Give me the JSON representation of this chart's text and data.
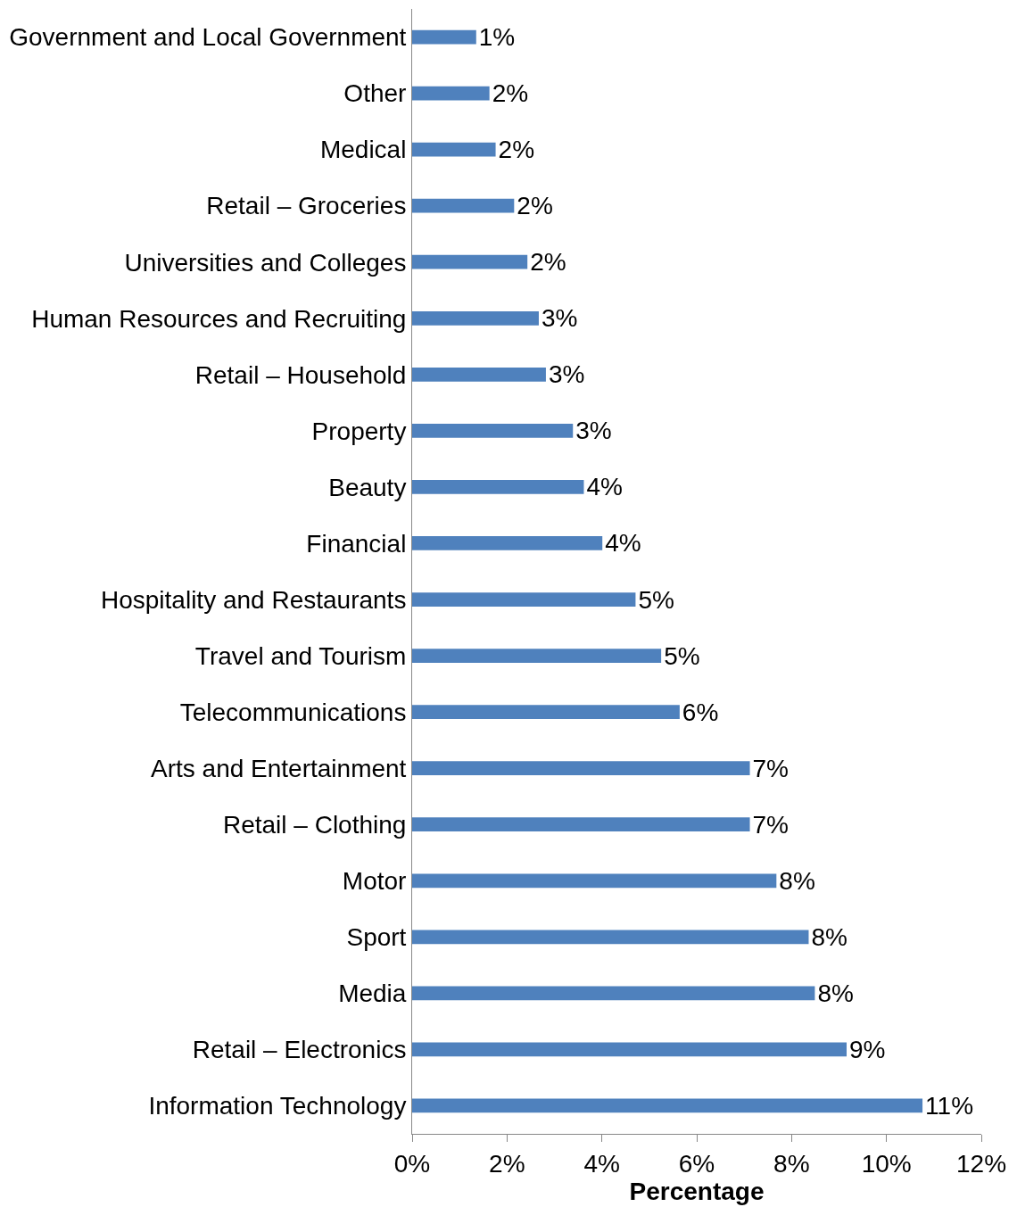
{
  "chart_data": {
    "type": "bar",
    "orientation": "horizontal",
    "xlabel": "Percentage",
    "categories": [
      "Government and Local Government",
      "Other",
      "Medical",
      "Retail – Groceries",
      "Universities and Colleges",
      "Human Resources and Recruiting",
      "Retail – Household",
      "Property",
      "Beauty",
      "Financial",
      "Hospitality and Restaurants",
      "Travel and Tourism",
      "Telecommunications",
      "Arts and Entertainment",
      "Retail – Clothing",
      "Motor",
      "Sport",
      "Media",
      "Retail – Electronics",
      "Information Technology"
    ],
    "values": [
      1.35,
      1.63,
      1.76,
      2.15,
      2.43,
      2.67,
      2.82,
      3.39,
      3.62,
      4.01,
      4.71,
      5.25,
      5.64,
      7.12,
      7.12,
      7.68,
      8.36,
      8.49,
      9.16,
      10.76
    ],
    "value_labels": [
      "1%",
      "2%",
      "2%",
      "2%",
      "2%",
      "3%",
      "3%",
      "3%",
      "4%",
      "4%",
      "5%",
      "5%",
      "6%",
      "7%",
      "7%",
      "8%",
      "8%",
      "8%",
      "9%",
      "11%"
    ],
    "color": "#4f81bd",
    "xlim": [
      0,
      12
    ],
    "xticks": [
      {
        "value": 0,
        "label": "0%"
      },
      {
        "value": 2,
        "label": "2%"
      },
      {
        "value": 4,
        "label": "4%"
      },
      {
        "value": 6,
        "label": "6%"
      },
      {
        "value": 8,
        "label": "8%"
      },
      {
        "value": 10,
        "label": "10%"
      },
      {
        "value": 12,
        "label": "12%"
      }
    ],
    "grid": false
  }
}
